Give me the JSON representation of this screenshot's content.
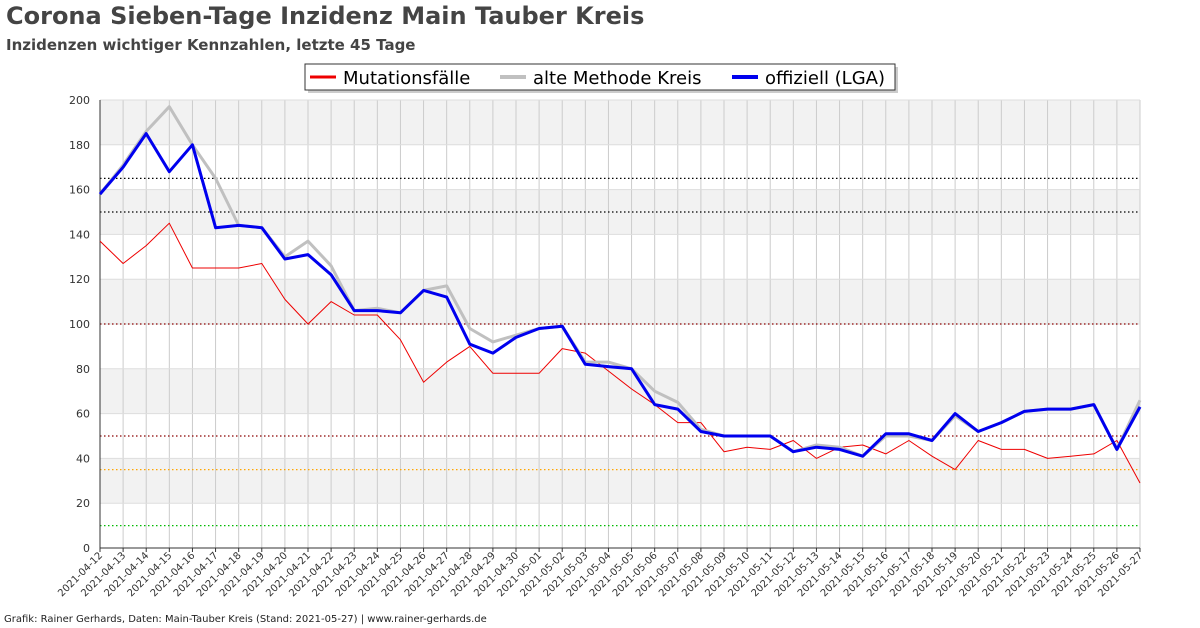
{
  "header": {
    "title": "Corona Sieben-Tage Inzidenz Main Tauber Kreis",
    "subtitle": "Inzidenzen wichtiger Kennzahlen, letzte 45 Tage"
  },
  "footer": {
    "text": "Grafik: Rainer Gerhards, Daten: Main-Tauber Kreis (Stand: 2021-05-27) | www.rainer-gerhards.de"
  },
  "chart_data": {
    "type": "line",
    "title": "Corona Sieben-Tage Inzidenz Main Tauber Kreis",
    "subtitle": "Inzidenzen wichtiger Kennzahlen, letzte 45 Tage",
    "xlabel": "",
    "ylabel": "",
    "ylim": [
      0,
      200
    ],
    "yticks": [
      0,
      20,
      40,
      60,
      80,
      100,
      120,
      140,
      160,
      180,
      200
    ],
    "grid": true,
    "legend_position": "top-center",
    "x": [
      "2021-04-12",
      "2021-04-13",
      "2021-04-14",
      "2021-04-15",
      "2021-04-16",
      "2021-04-17",
      "2021-04-18",
      "2021-04-19",
      "2021-04-20",
      "2021-04-21",
      "2021-04-22",
      "2021-04-23",
      "2021-04-24",
      "2021-04-25",
      "2021-04-26",
      "2021-04-27",
      "2021-04-28",
      "2021-04-29",
      "2021-04-30",
      "2021-05-01",
      "2021-05-02",
      "2021-05-03",
      "2021-05-04",
      "2021-05-05",
      "2021-05-06",
      "2021-05-07",
      "2021-05-08",
      "2021-05-09",
      "2021-05-10",
      "2021-05-11",
      "2021-05-12",
      "2021-05-13",
      "2021-05-14",
      "2021-05-15",
      "2021-05-16",
      "2021-05-17",
      "2021-05-18",
      "2021-05-19",
      "2021-05-20",
      "2021-05-21",
      "2021-05-22",
      "2021-05-23",
      "2021-05-24",
      "2021-05-25",
      "2021-05-26",
      "2021-05-27"
    ],
    "series": [
      {
        "name": "Mutationsfälle",
        "color": "#ee0000",
        "values": [
          137,
          127,
          135,
          145,
          125,
          125,
          125,
          127,
          111,
          100,
          110,
          104,
          104,
          93,
          74,
          83,
          90,
          78,
          78,
          78,
          89,
          87,
          79,
          71,
          64,
          56,
          56,
          43,
          45,
          44,
          48,
          40,
          45,
          46,
          42,
          48,
          41,
          35,
          48,
          44,
          44,
          40,
          41,
          42,
          48,
          29
        ]
      },
      {
        "name": "alte Methode Kreis",
        "color": "#c0c0c0",
        "values": [
          158,
          171,
          186,
          197,
          180,
          165,
          144,
          143,
          130,
          137,
          126,
          106,
          107,
          105,
          115,
          117,
          98,
          92,
          95,
          98,
          99,
          83,
          83,
          80,
          70,
          65,
          53,
          50,
          50,
          50,
          43,
          46,
          45,
          41,
          50,
          50,
          48,
          59,
          52,
          56,
          61,
          62,
          62,
          64,
          44,
          66
        ]
      },
      {
        "name": "offiziell (LGA)",
        "color": "#0000ee",
        "values": [
          158,
          170,
          185,
          168,
          180,
          143,
          144,
          143,
          129,
          131,
          122,
          106,
          106,
          105,
          115,
          112,
          91,
          87,
          94,
          98,
          99,
          82,
          81,
          80,
          64,
          62,
          52,
          50,
          50,
          50,
          43,
          45,
          44,
          41,
          51,
          51,
          48,
          60,
          52,
          56,
          61,
          62,
          62,
          64,
          44,
          63
        ]
      }
    ],
    "reference_lines": [
      {
        "value": 165,
        "color": "#000000"
      },
      {
        "value": 150,
        "color": "#000000"
      },
      {
        "value": 100,
        "color": "#8b0000"
      },
      {
        "value": 50,
        "color": "#8b0000"
      },
      {
        "value": 35,
        "color": "#ffa500"
      },
      {
        "value": 10,
        "color": "#00bb00"
      }
    ]
  }
}
